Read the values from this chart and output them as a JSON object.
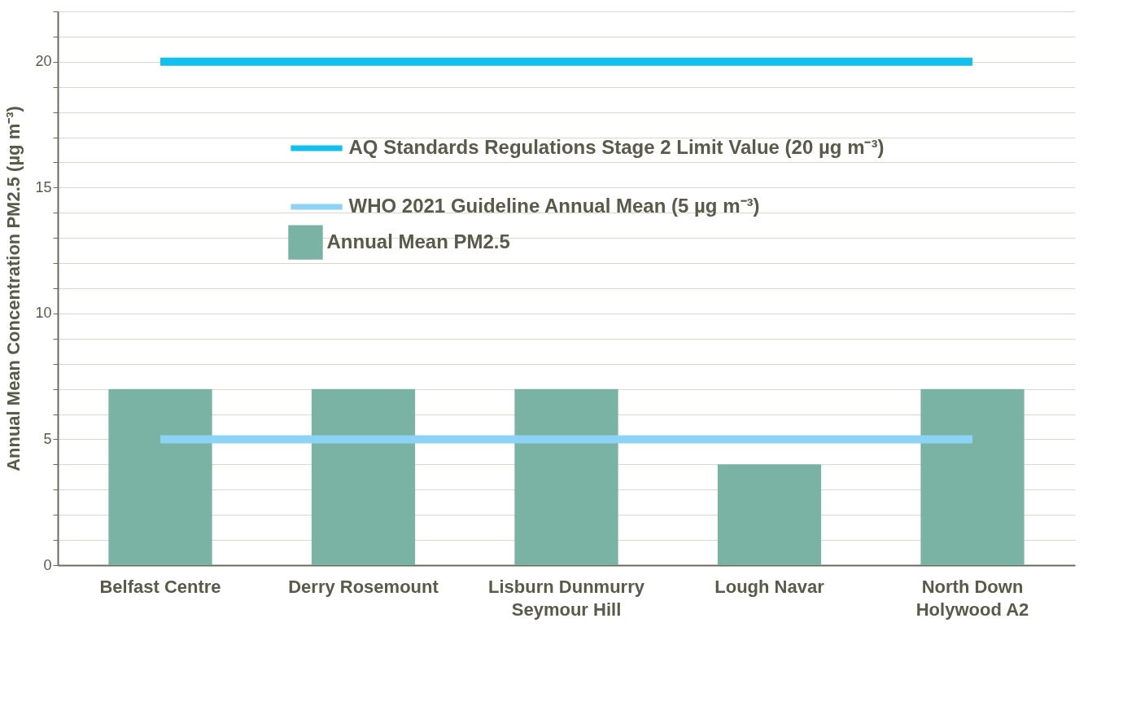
{
  "chart_data": {
    "type": "bar",
    "ylabel": "Annual Mean Concentration PM2.5 (µg m⁻³)",
    "categories": [
      "Belfast Centre",
      "Derry Rosemount",
      "Lisburn Dunmurry\nSeymour Hill",
      "Lough Navar",
      "North Down\nHolywood A2"
    ],
    "series": [
      {
        "name": "AQ Standards Regulations Stage 2 Limit Value (20 µg m⁻³)",
        "type": "line",
        "color": "#12bfee",
        "values": [
          20,
          20,
          20,
          20,
          20
        ]
      },
      {
        "name": "WHO 2021 Guideline Annual Mean (5 µg m⁻³)",
        "type": "line",
        "color": "#8dd3f5",
        "values": [
          5,
          5,
          5,
          5,
          5
        ]
      },
      {
        "name": "Annual Mean PM2.5",
        "color": "#7ab3a3",
        "values": [
          7,
          7,
          7,
          4,
          7
        ]
      }
    ],
    "ylim": [
      0,
      22
    ],
    "yticks": [
      0,
      {
        "value": 1,
        "label": null
      },
      {
        "value": 2,
        "label": null
      },
      {
        "value": 3,
        "label": null
      },
      {
        "value": 4,
        "label": null
      },
      5,
      {
        "value": 6,
        "label": null
      },
      {
        "value": 7,
        "label": null
      },
      {
        "value": 8,
        "label": null
      },
      {
        "value": 9,
        "label": null
      },
      10,
      {
        "value": 11,
        "label": null
      },
      {
        "value": 12,
        "label": null
      },
      {
        "value": 13,
        "label": null
      },
      {
        "value": 14,
        "label": null
      },
      15,
      {
        "value": 16,
        "label": null
      },
      {
        "value": 17,
        "label": null
      },
      {
        "value": 18,
        "label": null
      },
      {
        "value": 19,
        "label": null
      },
      20,
      {
        "value": 21,
        "label": null
      },
      {
        "value": 22,
        "label": null
      }
    ],
    "grid": "y",
    "legend": "top"
  }
}
